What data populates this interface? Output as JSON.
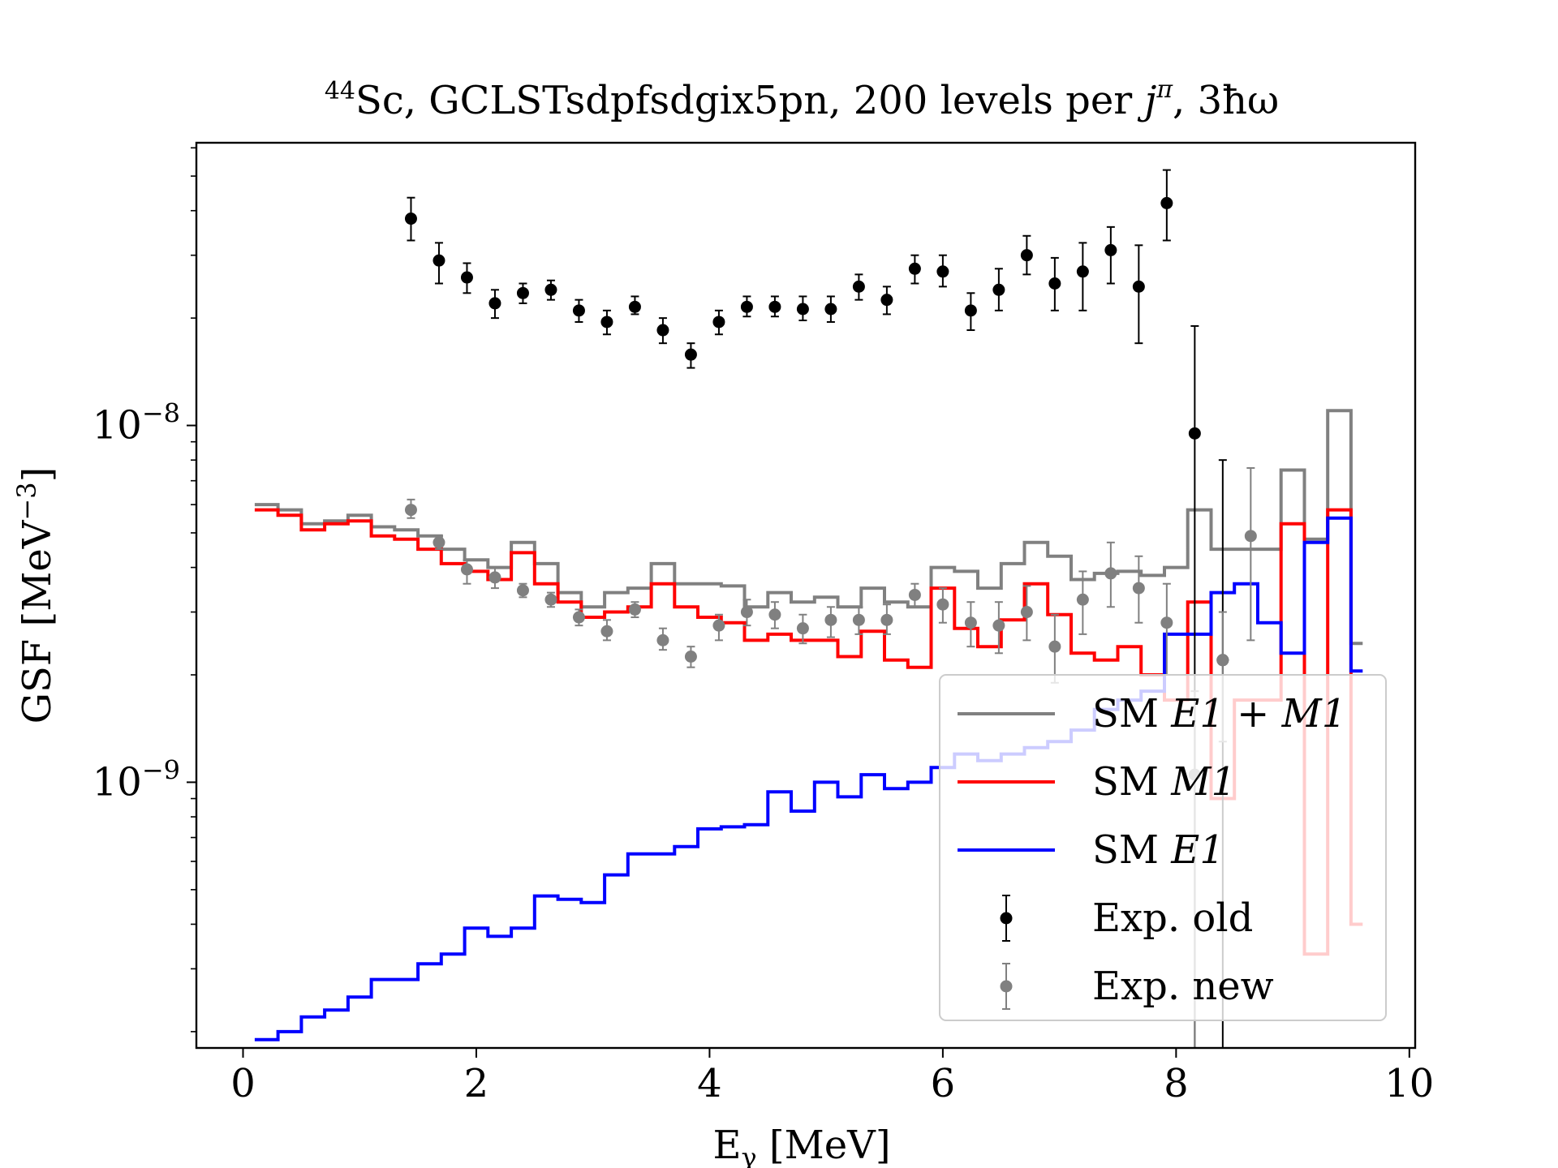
{
  "chart_data": {
    "type": "line",
    "title": "⁴⁴Sc, GCLSTsdpfsdgix5pn, 200 levels per jπ, 3ħω",
    "title_parts": {
      "superscript": "44",
      "element": "Sc, GCLSTsdpfsdgix5pn, 200 levels per ",
      "j": "j",
      "pi": "π",
      "rest": ", 3ħω"
    },
    "xlabel": "Eγ [MeV]",
    "xlabel_parts": {
      "main": "E",
      "sub": "γ",
      "unit": " [MeV]"
    },
    "ylabel": "GSF [MeV⁻³]",
    "ylabel_parts": {
      "main": "GSF [MeV",
      "sup": "−3",
      "close": "]"
    },
    "xlim": [
      -0.4,
      10.05
    ],
    "ylim": [
      1.8e-10,
      6.2e-08
    ],
    "yscale": "log",
    "xticks": [
      {
        "value": 0,
        "label": "0"
      },
      {
        "value": 2,
        "label": "2"
      },
      {
        "value": 4,
        "label": "4"
      },
      {
        "value": 6,
        "label": "6"
      },
      {
        "value": 8,
        "label": "8"
      },
      {
        "value": 10,
        "label": "10"
      }
    ],
    "yticks": [
      {
        "value": 1e-09,
        "base": "10",
        "exp": "−9"
      },
      {
        "value": 1e-08,
        "base": "10",
        "exp": "−8"
      }
    ],
    "legend_position": "lower-right",
    "step_series": [
      {
        "name": "SM E1 + M1",
        "color": "#808080",
        "edges": [
          0.1,
          0.3,
          0.5,
          0.7,
          0.9,
          1.1,
          1.3,
          1.5,
          1.7,
          1.9,
          2.1,
          2.3,
          2.5,
          2.7,
          2.9,
          3.1,
          3.3,
          3.5,
          3.7,
          3.9,
          4.1,
          4.3,
          4.5,
          4.7,
          4.9,
          5.1,
          5.3,
          5.5,
          5.7,
          5.9,
          6.1,
          6.3,
          6.5,
          6.7,
          6.9,
          7.1,
          7.3,
          7.5,
          7.7,
          7.9,
          8.1,
          8.3,
          8.5,
          8.7,
          8.9,
          9.1,
          9.3,
          9.5,
          9.6
        ],
        "values": [
          6e-09,
          5.8e-09,
          5.3e-09,
          5.4e-09,
          5.6e-09,
          5.2e-09,
          5.1e-09,
          4.9e-09,
          4.5e-09,
          4.2e-09,
          4e-09,
          4.7e-09,
          4.1e-09,
          3.4e-09,
          3.1e-09,
          3.4e-09,
          3.5e-09,
          4.1e-09,
          3.6e-09,
          3.6e-09,
          3.55e-09,
          3.1e-09,
          3.4e-09,
          3.2e-09,
          3.3e-09,
          3.1e-09,
          3.5e-09,
          3.2e-09,
          3.1e-09,
          4e-09,
          3.9e-09,
          3.5e-09,
          4.1e-09,
          4.7e-09,
          4.3e-09,
          3.7e-09,
          3.85e-09,
          3.9e-09,
          3.8e-09,
          4e-09,
          5.8e-09,
          4.5e-09,
          4.5e-09,
          4.5e-09,
          7.5e-09,
          4.8e-09,
          1.1e-08,
          2.45e-09
        ]
      },
      {
        "name": "SM M1",
        "color": "#ff0000",
        "edges": [
          0.1,
          0.3,
          0.5,
          0.7,
          0.9,
          1.1,
          1.3,
          1.5,
          1.7,
          1.9,
          2.1,
          2.3,
          2.5,
          2.7,
          2.9,
          3.1,
          3.3,
          3.5,
          3.7,
          3.9,
          4.1,
          4.3,
          4.5,
          4.7,
          4.9,
          5.1,
          5.3,
          5.5,
          5.7,
          5.9,
          6.1,
          6.3,
          6.5,
          6.7,
          6.9,
          7.1,
          7.3,
          7.5,
          7.7,
          7.9,
          8.1,
          8.3,
          8.5,
          8.7,
          8.9,
          9.1,
          9.3,
          9.5,
          9.6
        ],
        "values": [
          5.8e-09,
          5.6e-09,
          5.1e-09,
          5.3e-09,
          5.4e-09,
          4.9e-09,
          4.8e-09,
          4.5e-09,
          4.1e-09,
          3.9e-09,
          3.7e-09,
          4.4e-09,
          3.6e-09,
          3.2e-09,
          2.9e-09,
          3e-09,
          3.1e-09,
          3.6e-09,
          3.1e-09,
          2.9e-09,
          2.8e-09,
          2.5e-09,
          2.6e-09,
          2.5e-09,
          2.5e-09,
          2.25e-09,
          2.65e-09,
          2.2e-09,
          2.1e-09,
          3.5e-09,
          2.7e-09,
          2.4e-09,
          2.85e-09,
          3.6e-09,
          2.95e-09,
          2.3e-09,
          2.2e-09,
          2.4e-09,
          2e-09,
          1.7e-09,
          3.2e-09,
          9e-10,
          1.7e-09,
          1.7e-09,
          5.3e-09,
          3.3e-10,
          5.8e-09,
          4e-10
        ]
      },
      {
        "name": "SM E1",
        "color": "#0000ff",
        "edges": [
          0.1,
          0.3,
          0.5,
          0.7,
          0.9,
          1.1,
          1.3,
          1.5,
          1.7,
          1.9,
          2.1,
          2.3,
          2.5,
          2.7,
          2.9,
          3.1,
          3.3,
          3.5,
          3.7,
          3.9,
          4.1,
          4.3,
          4.5,
          4.7,
          4.9,
          5.1,
          5.3,
          5.5,
          5.7,
          5.9,
          6.1,
          6.3,
          6.5,
          6.7,
          6.9,
          7.1,
          7.3,
          7.5,
          7.7,
          7.9,
          8.1,
          8.3,
          8.5,
          8.7,
          8.9,
          9.1,
          9.3,
          9.5,
          9.6
        ],
        "values": [
          1.9e-10,
          2e-10,
          2.2e-10,
          2.3e-10,
          2.5e-10,
          2.8e-10,
          2.8e-10,
          3.1e-10,
          3.3e-10,
          3.9e-10,
          3.7e-10,
          3.9e-10,
          4.8e-10,
          4.7e-10,
          4.6e-10,
          5.5e-10,
          6.3e-10,
          6.3e-10,
          6.6e-10,
          7.4e-10,
          7.5e-10,
          7.6e-10,
          9.4e-10,
          8.3e-10,
          1e-09,
          9.1e-10,
          1.05e-09,
          9.6e-10,
          1e-09,
          1.1e-09,
          1.2e-09,
          1.15e-09,
          1.2e-09,
          1.25e-09,
          1.3e-09,
          1.4e-09,
          1.6e-09,
          1.7e-09,
          1.8e-09,
          2.6e-09,
          2.6e-09,
          3.4e-09,
          3.6e-09,
          2.8e-09,
          2.3e-09,
          4.7e-09,
          5.5e-09,
          2.05e-09
        ]
      }
    ],
    "error_series": [
      {
        "name": "Exp. old",
        "color": "#000000",
        "x": [
          1.44,
          1.68,
          1.92,
          2.16,
          2.4,
          2.64,
          2.88,
          3.12,
          3.36,
          3.6,
          3.84,
          4.08,
          4.32,
          4.56,
          4.8,
          5.04,
          5.28,
          5.52,
          5.76,
          6.0,
          6.24,
          6.48,
          6.72,
          6.96,
          7.2,
          7.44,
          7.68,
          7.92,
          8.16,
          8.4
        ],
        "y": [
          3.8e-08,
          2.9e-08,
          2.6e-08,
          2.2e-08,
          2.35e-08,
          2.4e-08,
          2.1e-08,
          1.95e-08,
          2.15e-08,
          1.85e-08,
          1.58e-08,
          1.95e-08,
          2.15e-08,
          2.15e-08,
          2.12e-08,
          2.12e-08,
          2.45e-08,
          2.25e-08,
          2.75e-08,
          2.7e-08,
          2.1e-08,
          2.4e-08,
          3e-08,
          2.5e-08,
          2.7e-08,
          3.1e-08,
          2.45e-08,
          4.2e-08,
          9.5e-09,
          2.2e-09
        ],
        "ylo": [
          3.3e-08,
          2.5e-08,
          2.35e-08,
          2e-08,
          2.2e-08,
          2.25e-08,
          1.95e-08,
          1.8e-08,
          2.05e-08,
          1.7e-08,
          1.45e-08,
          1.8e-08,
          2.02e-08,
          2.02e-08,
          1.97e-08,
          1.95e-08,
          2.25e-08,
          2.05e-08,
          2.5e-08,
          2.45e-08,
          1.85e-08,
          2.1e-08,
          2.65e-08,
          2.1e-08,
          2.1e-08,
          2.5e-08,
          1.7e-08,
          3.3e-08,
          1.8e-10,
          1.8e-10
        ],
        "yhi": [
          4.35e-08,
          3.25e-08,
          2.85e-08,
          2.4e-08,
          2.5e-08,
          2.55e-08,
          2.25e-08,
          2.1e-08,
          2.3e-08,
          2e-08,
          1.7e-08,
          2.1e-08,
          2.3e-08,
          2.3e-08,
          2.3e-08,
          2.3e-08,
          2.65e-08,
          2.45e-08,
          3e-08,
          3e-08,
          2.35e-08,
          2.75e-08,
          3.4e-08,
          2.95e-08,
          3.25e-08,
          3.6e-08,
          3.2e-08,
          5.2e-08,
          1.9e-08,
          8e-09
        ]
      },
      {
        "name": "Exp. new",
        "color": "#808080",
        "x": [
          1.44,
          1.68,
          1.92,
          2.16,
          2.4,
          2.64,
          2.88,
          3.12,
          3.36,
          3.6,
          3.84,
          4.08,
          4.32,
          4.56,
          4.8,
          5.04,
          5.28,
          5.52,
          5.76,
          6.0,
          6.24,
          6.48,
          6.72,
          6.96,
          7.2,
          7.44,
          7.68,
          7.92,
          8.16,
          8.4,
          8.64
        ],
        "y": [
          5.8e-09,
          4.7e-09,
          3.95e-09,
          3.75e-09,
          3.45e-09,
          3.25e-09,
          2.9e-09,
          2.65e-09,
          3.05e-09,
          2.5e-09,
          2.25e-09,
          2.75e-09,
          3e-09,
          2.95e-09,
          2.7e-09,
          2.85e-09,
          2.85e-09,
          2.85e-09,
          3.35e-09,
          3.15e-09,
          2.8e-09,
          2.75e-09,
          3e-09,
          2.4e-09,
          3.25e-09,
          3.85e-09,
          3.5e-09,
          2.8e-09,
          1.05e-09,
          2.2e-09,
          4.9e-09
        ],
        "ylo": [
          5.5e-09,
          4.5e-09,
          3.6e-09,
          3.5e-09,
          3.3e-09,
          3.1e-09,
          2.75e-09,
          2.5e-09,
          2.9e-09,
          2.35e-09,
          2.1e-09,
          2.5e-09,
          2.75e-09,
          2.7e-09,
          2.45e-09,
          2.55e-09,
          2.6e-09,
          2.6e-09,
          3.1e-09,
          2.8e-09,
          2.4e-09,
          2.3e-09,
          2.5e-09,
          1.9e-09,
          2.6e-09,
          3.1e-09,
          2.8e-09,
          2e-09,
          1.8e-10,
          1.3e-09,
          2.5e-09
        ],
        "yhi": [
          6.2e-09,
          4.9e-09,
          4.2e-09,
          4e-09,
          3.6e-09,
          3.4e-09,
          3.05e-09,
          2.85e-09,
          3.2e-09,
          2.7e-09,
          2.4e-09,
          2.95e-09,
          3.25e-09,
          3.2e-09,
          2.95e-09,
          3.1e-09,
          3.1e-09,
          3.15e-09,
          3.6e-09,
          3.5e-09,
          3.2e-09,
          3.2e-09,
          3.55e-09,
          2.95e-09,
          3.9e-09,
          4.7e-09,
          4.3e-09,
          3.6e-09,
          1.8e-09,
          3e-09,
          7.6e-09
        ]
      }
    ],
    "legend": [
      {
        "kind": "line",
        "color": "#808080",
        "pre": "SM ",
        "math": "E1 + M1"
      },
      {
        "kind": "line",
        "color": "#ff0000",
        "pre": "SM ",
        "math": "M1"
      },
      {
        "kind": "line",
        "color": "#0000ff",
        "pre": "SM ",
        "math": "E1"
      },
      {
        "kind": "errorbar",
        "color": "#000000",
        "pre": "Exp. old",
        "math": ""
      },
      {
        "kind": "errorbar",
        "color": "#808080",
        "pre": "Exp. new",
        "math": ""
      }
    ]
  }
}
